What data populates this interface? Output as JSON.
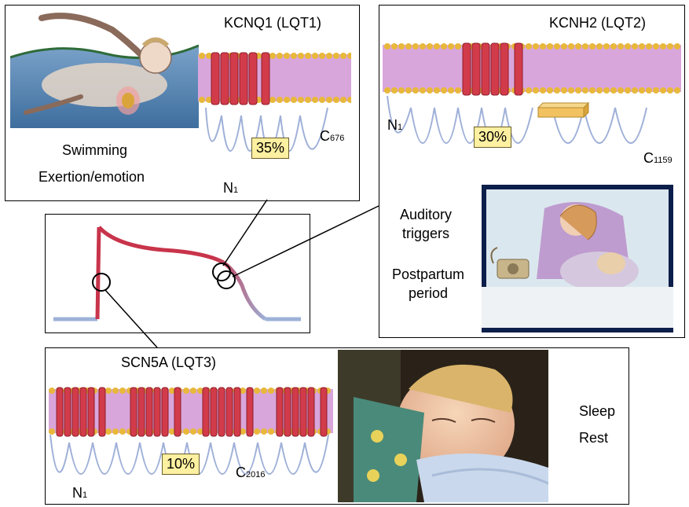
{
  "lqt1": {
    "gene": "KCNQ1 (LQT1)",
    "pct": "35%",
    "n_term": "N",
    "n_sub": "1",
    "c_term": "C",
    "c_sub": "676",
    "trigger1": "Swimming",
    "trigger2": "Exertion/emotion"
  },
  "lqt2": {
    "gene": "KCNH2 (LQT2)",
    "pct": "30%",
    "n_term": "N",
    "n_sub": "1",
    "c_term": "C",
    "c_sub": "1159",
    "trigger1a": "Auditory",
    "trigger1b": "triggers",
    "trigger2a": "Postpartum",
    "trigger2b": "period"
  },
  "lqt3": {
    "gene": "SCN5A (LQT3)",
    "pct": "10%",
    "n_term": "N",
    "n_sub": "1",
    "c_term": "C",
    "c_sub": "2016",
    "trigger1": "Sleep",
    "trigger2": "Rest"
  },
  "colors": {
    "helix": "#d23b4a",
    "lipid_head": "#e8b83a",
    "lipid_tail": "#c78bd0",
    "loop": "#9fb0d8",
    "pct_bg": "#fdf0a0",
    "ap_red": "#c8344b",
    "ap_blue": "#9db1d8"
  }
}
